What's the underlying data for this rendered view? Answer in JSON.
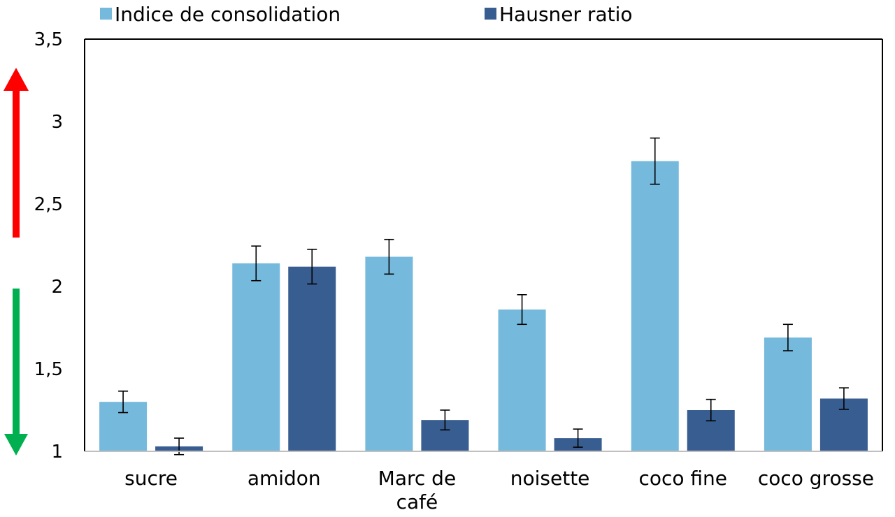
{
  "chart_data": {
    "type": "bar",
    "title": "",
    "xlabel": "",
    "ylabel": "",
    "ylim": [
      1,
      3.5
    ],
    "yticks": [
      "1",
      "1,5",
      "2",
      "2,5",
      "3",
      "3,5"
    ],
    "categories": [
      [
        "sucre"
      ],
      [
        "amidon"
      ],
      [
        "Marc de",
        "café"
      ],
      [
        "noisette"
      ],
      [
        "coco fine"
      ],
      [
        "coco grosse"
      ]
    ],
    "series": [
      {
        "name": "Indice de consolidation",
        "color": "#75b9dc",
        "values": [
          1.3,
          2.14,
          2.18,
          1.86,
          2.76,
          1.69
        ],
        "errors": [
          0.065,
          0.105,
          0.105,
          0.09,
          0.14,
          0.08
        ]
      },
      {
        "name": "Hausner ratio",
        "color": "#385d90",
        "values": [
          1.03,
          2.12,
          1.19,
          1.08,
          1.25,
          1.32
        ],
        "errors": [
          0.05,
          0.105,
          0.06,
          0.055,
          0.065,
          0.065
        ]
      }
    ],
    "legend_position": "top",
    "grid": false,
    "side_arrows": [
      {
        "direction": "up",
        "color": "#ff0000"
      },
      {
        "direction": "down",
        "color": "#00b050"
      }
    ]
  }
}
